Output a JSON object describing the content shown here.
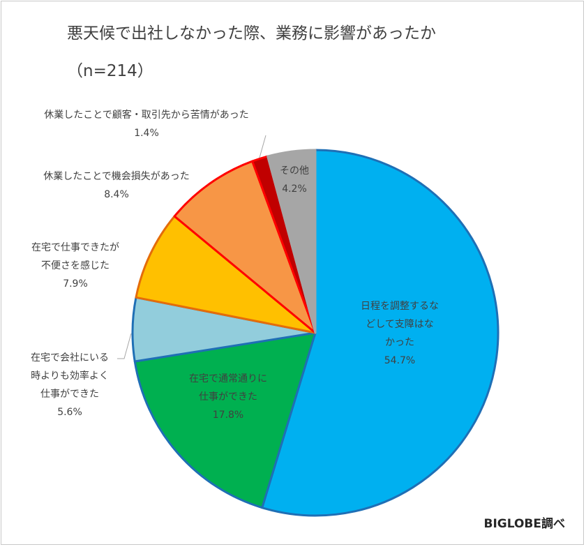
{
  "chart_data": {
    "type": "pie",
    "title": "悪天候で出社しなかった際、業務に影響があったか",
    "subtitle": "（n=214）",
    "slices": [
      {
        "lines": [
          "日程を調整するな",
          "どして支障はな",
          "かった"
        ],
        "value": 54.7,
        "pct": "54.7%",
        "color": "#00B0F0",
        "border": "#1F6FB5"
      },
      {
        "lines": [
          "在宅で通常通りに",
          "仕事ができた"
        ],
        "value": 17.8,
        "pct": "17.8%",
        "color": "#00B050",
        "border": "#1F6FB5"
      },
      {
        "lines": [
          "在宅で会社にいる",
          "時よりも効率よく",
          "仕事ができた"
        ],
        "value": 5.6,
        "pct": "5.6%",
        "color": "#92CDDC",
        "border": "#1F6FB5"
      },
      {
        "lines": [
          "在宅で仕事できたが",
          "不便さを感じた"
        ],
        "value": 7.9,
        "pct": "7.9%",
        "color": "#FFC000",
        "border": "#E46C0A"
      },
      {
        "lines": [
          "休業したことで機会損失があった"
        ],
        "value": 8.4,
        "pct": "8.4%",
        "color": "#F79646",
        "border": "#FF0000"
      },
      {
        "lines": [
          "休業したことで顧客・取引先から苦情があった"
        ],
        "value": 1.4,
        "pct": "1.4%",
        "color": "#C00000",
        "border": "#FF0000"
      },
      {
        "lines": [
          "その他"
        ],
        "value": 4.2,
        "pct": "4.2%",
        "color": "#A6A6A6",
        "border": "#A6A6A6"
      }
    ],
    "legend": "none"
  },
  "source": "BIGLOBE調べ"
}
